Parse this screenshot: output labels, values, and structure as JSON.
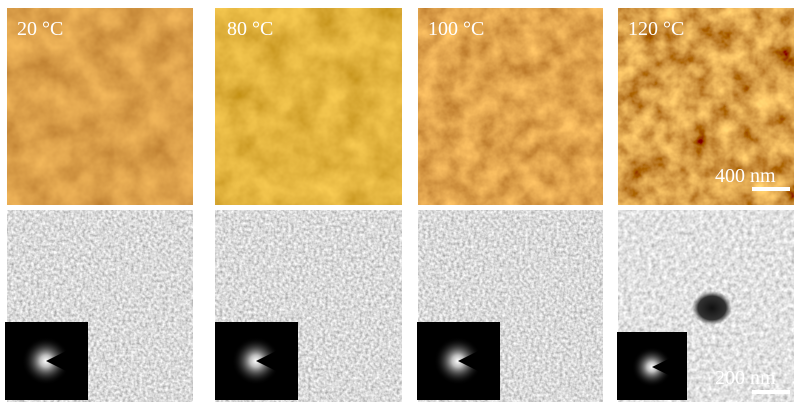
{
  "panels": [
    {
      "label": "20 °C"
    },
    {
      "label": "80 °C"
    },
    {
      "label": "100 °C"
    },
    {
      "label": "120 °C"
    }
  ],
  "scale_bars": {
    "afm": "400 nm",
    "tem": "200 nm"
  }
}
